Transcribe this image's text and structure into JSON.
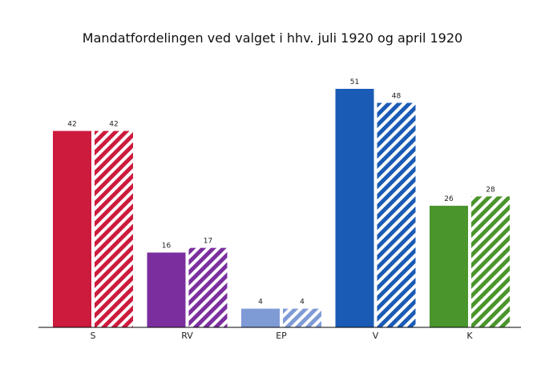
{
  "chart_data": {
    "type": "bar",
    "title": "Mandatfordelingen ved valget i hhv. juli 1920 og april 1920",
    "xlabel": "",
    "ylabel": "",
    "ylim": [
      0,
      51
    ],
    "grid": false,
    "categories": [
      "S",
      "RV",
      "EP",
      "V",
      "K"
    ],
    "colors": [
      "#cc1b3d",
      "#7b2f9e",
      "#7f9bd6",
      "#1a5bb5",
      "#4a952c"
    ],
    "series": [
      {
        "name": "juli 1920",
        "pattern": "solid",
        "values": [
          42,
          16,
          4,
          51,
          26
        ]
      },
      {
        "name": "april 1920",
        "pattern": "hatched",
        "values": [
          42,
          17,
          4,
          48,
          28
        ]
      }
    ]
  }
}
